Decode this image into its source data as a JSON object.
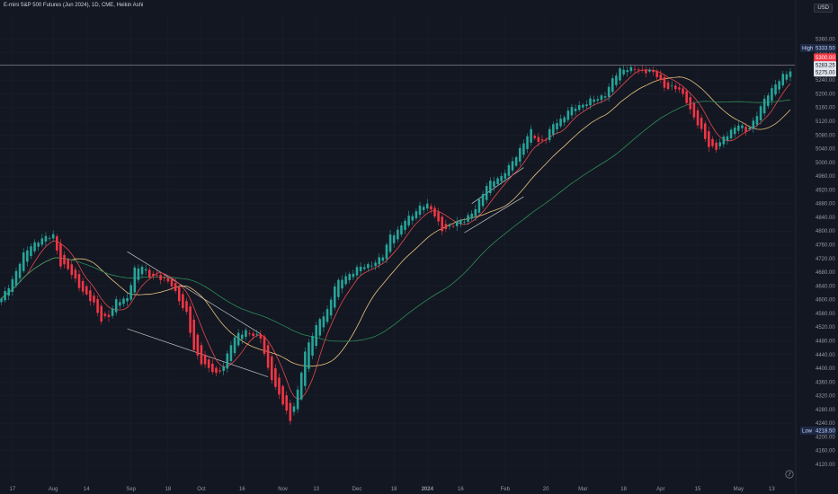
{
  "header": {
    "title": "E-mini S&P 500 Futures (Jun 2024), 1D, CME, Heikin Ashi",
    "currency": "USD"
  },
  "colors": {
    "background": "#131722",
    "up": "#26a69a",
    "down": "#f23645",
    "ma_fast": "#e5484d",
    "ma_mid": "#e8c37e",
    "ma_slow": "#2e8b57",
    "trendline": "#c8c8c8",
    "gridline": "#1c2030"
  },
  "chart_data": {
    "type": "candlestick",
    "price_axis": {
      "min": 4120,
      "max": 5400,
      "ticks": [
        5360,
        5320,
        5280,
        5240,
        5200,
        5160,
        5120,
        5080,
        5040,
        5000,
        4960,
        4920,
        4880,
        4840,
        4800,
        4760,
        4720,
        4680,
        4640,
        4600,
        4560,
        4520,
        4480,
        4440,
        4400,
        4360,
        4320,
        4280,
        4240,
        4200,
        4160,
        4120
      ],
      "tick_labels": [
        "5360.00",
        "5320.00",
        "5280.00",
        "5240.00",
        "5200.00",
        "5160.00",
        "5120.00",
        "5080.00",
        "5040.00",
        "5000.00",
        "4960.00",
        "4920.00",
        "4880.00",
        "4840.00",
        "4800.00",
        "4760.00",
        "4720.00",
        "4680.00",
        "4640.00",
        "4600.00",
        "4560.00",
        "4520.00",
        "4480.00",
        "4440.00",
        "4400.00",
        "4360.00",
        "4320.00",
        "4280.00",
        "4240.00",
        "4200.00",
        "4160.00",
        "4120.00"
      ]
    },
    "time_axis": {
      "labels": [
        {
          "text": "17",
          "bar": 3
        },
        {
          "text": "Aug",
          "bar": 14
        },
        {
          "text": "14",
          "bar": 23
        },
        {
          "text": "Sep",
          "bar": 35
        },
        {
          "text": "18",
          "bar": 45
        },
        {
          "text": "Oct",
          "bar": 54
        },
        {
          "text": "16",
          "bar": 65
        },
        {
          "text": "Nov",
          "bar": 76
        },
        {
          "text": "13",
          "bar": 85
        },
        {
          "text": "Dec",
          "bar": 96
        },
        {
          "text": "18",
          "bar": 106
        },
        {
          "text": "2024",
          "bar": 115
        },
        {
          "text": "16",
          "bar": 124
        },
        {
          "text": "Feb",
          "bar": 136
        },
        {
          "text": "20",
          "bar": 147
        },
        {
          "text": "Mar",
          "bar": 157
        },
        {
          "text": "18",
          "bar": 168
        },
        {
          "text": "Apr",
          "bar": 178
        },
        {
          "text": "15",
          "bar": 188
        },
        {
          "text": "May",
          "bar": 199
        },
        {
          "text": "13",
          "bar": 208
        }
      ]
    },
    "anchors": [
      [
        0,
        4600
      ],
      [
        3,
        4660
      ],
      [
        6,
        4730
      ],
      [
        8,
        4760
      ],
      [
        11,
        4775
      ],
      [
        14,
        4790
      ],
      [
        16,
        4700
      ],
      [
        18,
        4690
      ],
      [
        20,
        4660
      ],
      [
        22,
        4620
      ],
      [
        25,
        4590
      ],
      [
        27,
        4540
      ],
      [
        29,
        4550
      ],
      [
        31,
        4600
      ],
      [
        34,
        4600
      ],
      [
        36,
        4690
      ],
      [
        38,
        4700
      ],
      [
        40,
        4665
      ],
      [
        42,
        4670
      ],
      [
        44,
        4660
      ],
      [
        46,
        4640
      ],
      [
        48,
        4600
      ],
      [
        50,
        4560
      ],
      [
        52,
        4450
      ],
      [
        54,
        4420
      ],
      [
        56,
        4400
      ],
      [
        58,
        4380
      ],
      [
        60,
        4410
      ],
      [
        62,
        4470
      ],
      [
        64,
        4500
      ],
      [
        66,
        4510
      ],
      [
        68,
        4495
      ],
      [
        70,
        4490
      ],
      [
        72,
        4400
      ],
      [
        74,
        4340
      ],
      [
        76,
        4300
      ],
      [
        78,
        4250
      ],
      [
        80,
        4330
      ],
      [
        82,
        4450
      ],
      [
        84,
        4500
      ],
      [
        86,
        4540
      ],
      [
        88,
        4570
      ],
      [
        90,
        4640
      ],
      [
        92,
        4660
      ],
      [
        94,
        4675
      ],
      [
        96,
        4690
      ],
      [
        99,
        4700
      ],
      [
        101,
        4710
      ],
      [
        103,
        4725
      ],
      [
        105,
        4790
      ],
      [
        107,
        4800
      ],
      [
        109,
        4830
      ],
      [
        111,
        4850
      ],
      [
        113,
        4870
      ],
      [
        115,
        4875
      ],
      [
        117,
        4850
      ],
      [
        119,
        4800
      ],
      [
        121,
        4810
      ],
      [
        123,
        4830
      ],
      [
        125,
        4830
      ],
      [
        127,
        4850
      ],
      [
        129,
        4890
      ],
      [
        131,
        4930
      ],
      [
        133,
        4950
      ],
      [
        135,
        4960
      ],
      [
        137,
        4985
      ],
      [
        139,
        5020
      ],
      [
        141,
        5060
      ],
      [
        143,
        5090
      ],
      [
        145,
        5060
      ],
      [
        147,
        5070
      ],
      [
        149,
        5110
      ],
      [
        151,
        5125
      ],
      [
        153,
        5150
      ],
      [
        155,
        5160
      ],
      [
        157,
        5170
      ],
      [
        159,
        5180
      ],
      [
        161,
        5185
      ],
      [
        163,
        5200
      ],
      [
        165,
        5240
      ],
      [
        167,
        5270
      ],
      [
        169,
        5275
      ],
      [
        171,
        5270
      ],
      [
        173,
        5265
      ],
      [
        175,
        5270
      ],
      [
        177,
        5250
      ],
      [
        179,
        5220
      ],
      [
        181,
        5220
      ],
      [
        183,
        5210
      ],
      [
        185,
        5180
      ],
      [
        187,
        5130
      ],
      [
        189,
        5090
      ],
      [
        191,
        5050
      ],
      [
        193,
        5040
      ],
      [
        195,
        5070
      ],
      [
        197,
        5095
      ],
      [
        199,
        5110
      ],
      [
        201,
        5090
      ],
      [
        203,
        5120
      ],
      [
        205,
        5160
      ],
      [
        207,
        5200
      ],
      [
        209,
        5230
      ],
      [
        211,
        5250
      ],
      [
        213,
        5265
      ]
    ],
    "moving_averages": [
      {
        "key": "fast",
        "period": 8
      },
      {
        "key": "mid",
        "period": 20
      },
      {
        "key": "slow",
        "period": 50
      }
    ],
    "trendlines": [
      {
        "from": [
          34,
          4740
        ],
        "to": [
          70,
          4500
        ]
      },
      {
        "from": [
          34,
          4515
        ],
        "to": [
          72,
          4375
        ]
      },
      {
        "from": [
          127,
          4880
        ],
        "to": [
          141,
          4985
        ]
      },
      {
        "from": [
          125,
          4795
        ],
        "to": [
          141,
          4900
        ]
      }
    ],
    "current_price_line": 5283.25,
    "price_tags": [
      {
        "label": "High",
        "value": "5333.50",
        "price": 5333.5,
        "kind": "high"
      },
      {
        "label": "",
        "value": "5300.00",
        "price": 5306,
        "kind": "red"
      },
      {
        "label": "",
        "value": "5283.25",
        "price": 5283.25,
        "kind": "current"
      },
      {
        "label": "",
        "value": "5275.00",
        "price": 5262,
        "kind": "current2"
      },
      {
        "label": "Low",
        "value": "4218.50",
        "price": 4218.5,
        "kind": "low"
      }
    ]
  }
}
